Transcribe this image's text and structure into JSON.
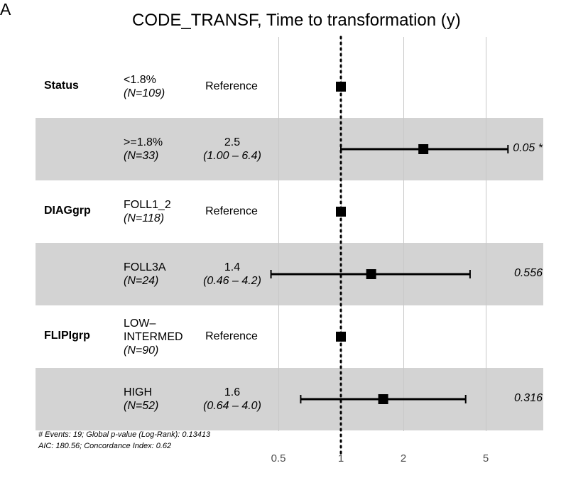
{
  "panel_label": "A",
  "chart_data": {
    "type": "forest",
    "title": "CODE_TRANSF, Time to transformation (y)",
    "x_scale": "log",
    "x_ticks": [
      0.5,
      1,
      2,
      5
    ],
    "x_tick_labels": [
      "0.5",
      "1",
      "2",
      "5"
    ],
    "reference_line": 1,
    "rows": [
      {
        "variable": "Status",
        "level": [
          "<1.8%"
        ],
        "n": "(N=109)",
        "estimate_text": "Reference",
        "ci_text": "",
        "hr": 1,
        "lo": null,
        "hi": null,
        "p": "",
        "shaded": false
      },
      {
        "variable": "",
        "level": [
          ">=1.8%"
        ],
        "n": "(N=33)",
        "estimate_text": "2.5",
        "ci_text": "(1.00 – 6.4)",
        "hr": 2.5,
        "lo": 1.0,
        "hi": 6.4,
        "p": "0.05 *",
        "shaded": true
      },
      {
        "variable": "DIAGgrp",
        "level": [
          "FOLL1_2"
        ],
        "n": "(N=118)",
        "estimate_text": "Reference",
        "ci_text": "",
        "hr": 1,
        "lo": null,
        "hi": null,
        "p": "",
        "shaded": false
      },
      {
        "variable": "",
        "level": [
          "FOLL3A"
        ],
        "n": "(N=24)",
        "estimate_text": "1.4",
        "ci_text": "(0.46 – 4.2)",
        "hr": 1.4,
        "lo": 0.46,
        "hi": 4.2,
        "p": "0.556",
        "shaded": true
      },
      {
        "variable": "FLIPIgrp",
        "level": [
          "LOW–",
          "INTERMED"
        ],
        "n": "(N=90)",
        "estimate_text": "Reference",
        "ci_text": "",
        "hr": 1,
        "lo": null,
        "hi": null,
        "p": "",
        "shaded": false
      },
      {
        "variable": "",
        "level": [
          "HIGH"
        ],
        "n": "(N=52)",
        "estimate_text": "1.6",
        "ci_text": "(0.64 – 4.0)",
        "hr": 1.6,
        "lo": 0.64,
        "hi": 4.0,
        "p": "0.316",
        "shaded": true
      }
    ],
    "footnote": [
      "# Events: 19; Global p-value (Log-Rank): 0.13413",
      "AIC: 180.56; Concordance Index: 0.62"
    ],
    "colors": {
      "shade": "#d3d3d3",
      "grid": "#c8c8c8",
      "marks": "#000000"
    }
  }
}
